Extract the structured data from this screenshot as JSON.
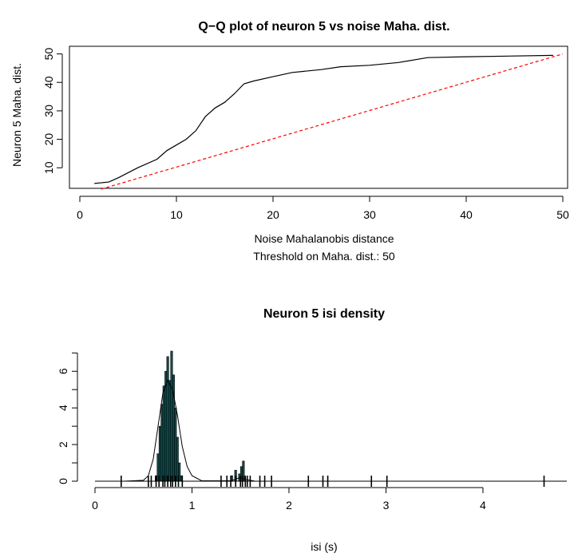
{
  "chart_data": [
    {
      "type": "line",
      "title": "Q−Q plot of neuron 5 vs noise Maha. dist.",
      "xlabel": "Noise Mahalanobis distance",
      "subtitle": "Threshold on Maha. dist.: 50",
      "ylabel": "Neuron 5 Maha. dist.",
      "xlim": [
        0,
        50
      ],
      "ylim": [
        2.5,
        51
      ],
      "x_ticks": [
        "0",
        "10",
        "20",
        "30",
        "40",
        "50"
      ],
      "y_ticks": [
        "10",
        "20",
        "30",
        "40",
        "50"
      ],
      "series": [
        {
          "style": "solid",
          "color": "#000000",
          "x": [
            1.5,
            3,
            4,
            6,
            8,
            9,
            10,
            11,
            12,
            13,
            14,
            15,
            16,
            17,
            18,
            20,
            22,
            25,
            27,
            30,
            33,
            36,
            40,
            49
          ],
          "y": [
            4.5,
            5,
            6.5,
            10,
            13,
            16,
            18,
            20,
            23,
            28,
            31,
            33,
            36,
            39.5,
            40.5,
            42,
            43.5,
            44.5,
            45.5,
            46,
            47,
            48.7,
            49,
            49.5
          ]
        },
        {
          "style": "dashed",
          "color": "#ff0000",
          "x": [
            2.2,
            50
          ],
          "y": [
            2.5,
            50
          ]
        }
      ]
    },
    {
      "type": "bar",
      "title": "Neuron 5 isi density",
      "xlabel": "isi (s)",
      "ylabel": "",
      "xlim": [
        0,
        4.7
      ],
      "ylim": [
        0,
        7.1
      ],
      "x_ticks": [
        "0",
        "1",
        "2",
        "3",
        "4"
      ],
      "y_ticks": [
        "0",
        "2",
        "4",
        "6"
      ],
      "histogram": {
        "bin_left": [
          0.62,
          0.64,
          0.66,
          0.68,
          0.7,
          0.72,
          0.74,
          0.76,
          0.78,
          0.8,
          0.82,
          0.84,
          0.86,
          0.88,
          1.4,
          1.44,
          1.48,
          1.5,
          1.52
        ],
        "heights": [
          0.3,
          1.5,
          3.0,
          4.2,
          5.2,
          6.0,
          6.8,
          5.5,
          7.1,
          5.8,
          4.0,
          2.4,
          1.0,
          0.3,
          0.3,
          0.6,
          0.4,
          0.8,
          1.1
        ]
      },
      "density_curve": [
        [
          0.3,
          0
        ],
        [
          0.5,
          0.05
        ],
        [
          0.55,
          0.3
        ],
        [
          0.6,
          1.2
        ],
        [
          0.65,
          3.0
        ],
        [
          0.7,
          4.8
        ],
        [
          0.75,
          5.5
        ],
        [
          0.8,
          5.0
        ],
        [
          0.85,
          3.6
        ],
        [
          0.9,
          1.9
        ],
        [
          0.95,
          0.8
        ],
        [
          1.0,
          0.3
        ],
        [
          1.1,
          0.02
        ],
        [
          1.4,
          0.02
        ],
        [
          1.5,
          0.2
        ],
        [
          1.55,
          0.1
        ],
        [
          1.65,
          0
        ],
        [
          4.7,
          0
        ]
      ],
      "rug": [
        0.27,
        0.55,
        0.58,
        0.63,
        0.66,
        0.7,
        0.72,
        0.75,
        0.78,
        0.8,
        0.83,
        0.86,
        0.9,
        1.3,
        1.36,
        1.4,
        1.45,
        1.5,
        1.52,
        1.55,
        1.57,
        1.6,
        1.7,
        1.75,
        1.82,
        2.2,
        2.35,
        2.4,
        2.85,
        3.01,
        4.63
      ]
    }
  ]
}
